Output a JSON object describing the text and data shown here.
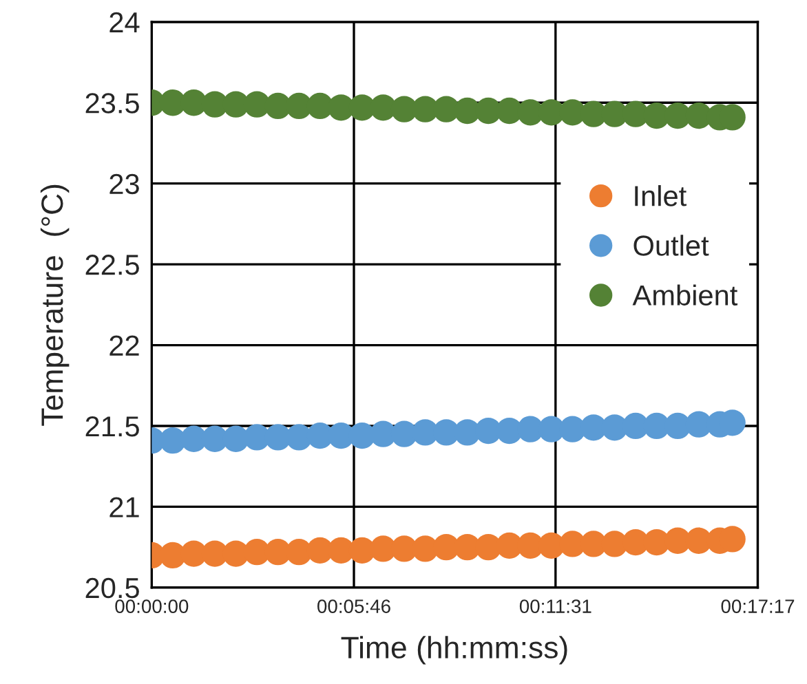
{
  "chart_data": {
    "type": "scatter",
    "xlabel": "Time (hh:mm:ss)",
    "ylabel": "Temperature  (°C)",
    "x": [
      0,
      0.01,
      0.02,
      0.03,
      0.04,
      0.05,
      0.06,
      0.07,
      0.08,
      0.09,
      0.1,
      0.11,
      0.12,
      0.13,
      0.14,
      0.15,
      0.16,
      0.17,
      0.18,
      0.19,
      0.2,
      0.21,
      0.22,
      0.23,
      0.24,
      0.25,
      0.26,
      0.27,
      0.276
    ],
    "series": [
      {
        "name": "Inlet",
        "color": "#ed7d31",
        "values": [
          20.7,
          20.7,
          20.71,
          20.71,
          20.71,
          20.72,
          20.72,
          20.72,
          20.73,
          20.73,
          20.73,
          20.74,
          20.74,
          20.74,
          20.75,
          20.75,
          20.75,
          20.76,
          20.76,
          20.76,
          20.77,
          20.77,
          20.77,
          20.78,
          20.78,
          20.79,
          20.79,
          20.79,
          20.8
        ]
      },
      {
        "name": "Outlet",
        "color": "#5b9bd5",
        "values": [
          21.41,
          21.41,
          21.42,
          21.42,
          21.42,
          21.43,
          21.43,
          21.43,
          21.44,
          21.44,
          21.44,
          21.45,
          21.45,
          21.46,
          21.46,
          21.46,
          21.47,
          21.47,
          21.48,
          21.48,
          21.48,
          21.49,
          21.49,
          21.5,
          21.5,
          21.5,
          21.51,
          21.51,
          21.52
        ]
      },
      {
        "name": "Ambient",
        "color": "#548235",
        "values": [
          23.5,
          23.5,
          23.5,
          23.49,
          23.49,
          23.49,
          23.48,
          23.48,
          23.48,
          23.47,
          23.47,
          23.47,
          23.46,
          23.46,
          23.46,
          23.45,
          23.45,
          23.45,
          23.44,
          23.44,
          23.44,
          23.43,
          23.43,
          23.43,
          23.42,
          23.42,
          23.42,
          23.41,
          23.41
        ]
      }
    ],
    "xlim": [
      0,
      0.28806
    ],
    "xticks": [
      {
        "value": 0,
        "label": "00:00:00"
      },
      {
        "value": 0.09611,
        "label": "00:05:46"
      },
      {
        "value": 0.19194,
        "label": "00:11:31"
      },
      {
        "value": 0.28806,
        "label": "00:17:17"
      }
    ],
    "ylim": [
      20.5,
      24
    ],
    "yticks": [
      20.5,
      21,
      21.5,
      22,
      22.5,
      23,
      23.5,
      24
    ],
    "grid": true,
    "legend": "right",
    "marker": "circle"
  }
}
